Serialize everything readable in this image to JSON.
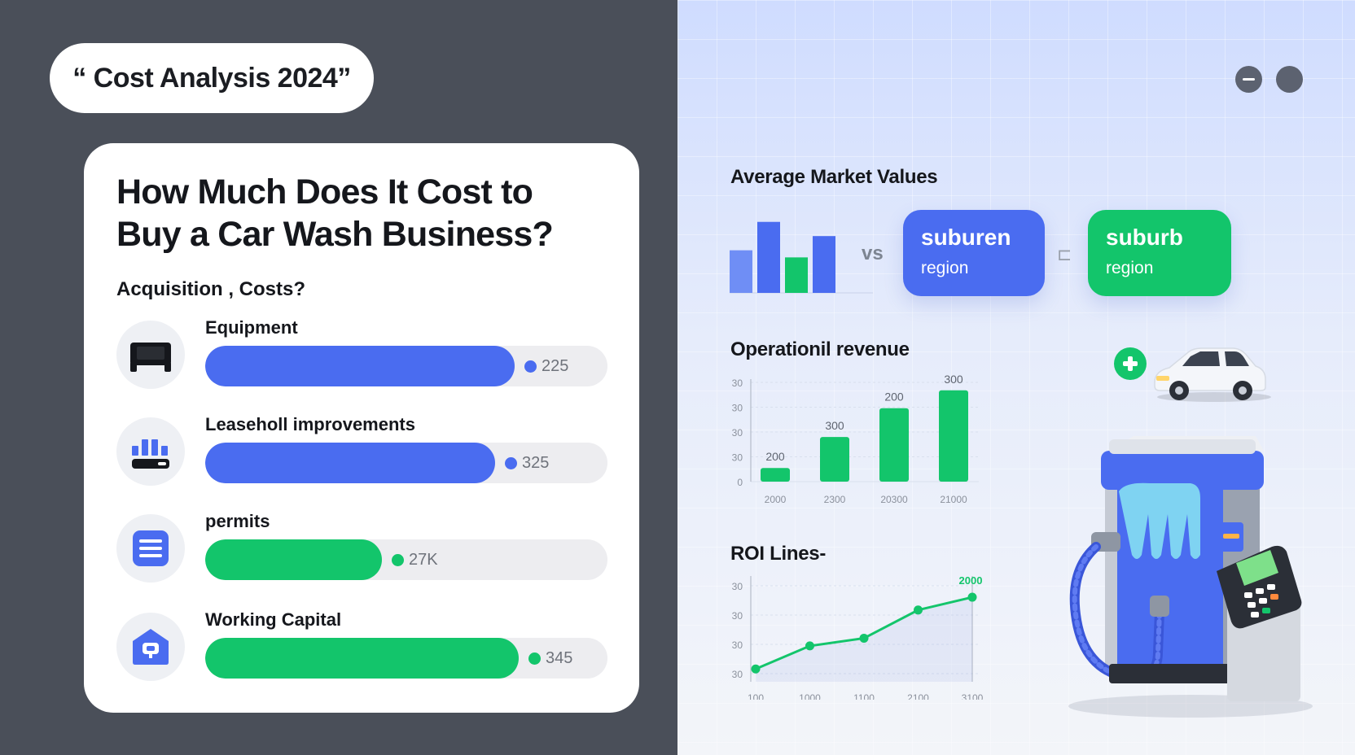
{
  "header": {
    "tag": "“ Cost Analysis 2024”"
  },
  "card": {
    "title_line1": "How Much Does It Cost to",
    "title_line2": "Buy a Car Wash Business?",
    "subtitle": "Acquisition , Costs?"
  },
  "costs": [
    {
      "label": "Equipment",
      "value": "225",
      "progress": 0.77,
      "color": "#4a6cf0",
      "icon": "equipment-icon"
    },
    {
      "label": "Leaseholl improvements",
      "value": "325",
      "progress": 0.72,
      "color": "#4a6cf0",
      "icon": "building-icon"
    },
    {
      "label": "permits",
      "value": "27K",
      "progress": 0.44,
      "color": "#13c56b",
      "icon": "document-icon"
    },
    {
      "label": "Working Capital",
      "value": "345",
      "progress": 0.78,
      "color": "#13c56b",
      "icon": "home-icon"
    }
  ],
  "market": {
    "title": "Average Market Values",
    "vs": "vs",
    "separator": "⊏",
    "regions": [
      {
        "name": "suburen",
        "sub": "region",
        "color": "#4a6cf0"
      },
      {
        "name": "suburb",
        "sub": "region",
        "color": "#13c56b"
      }
    ]
  },
  "colors": {
    "blue": "#4a6cf0",
    "green": "#13c56b",
    "left_bg": "#4a4f59"
  },
  "chart_data": [
    {
      "type": "bar",
      "title": "",
      "categories": [
        "",
        "",
        "",
        ""
      ],
      "values": [
        60,
        100,
        50,
        80
      ],
      "colors": [
        "#6f8ef5",
        "#4a6cf0",
        "#13c56b",
        "#4a6cf0"
      ],
      "ylim": [
        0,
        110
      ]
    },
    {
      "type": "bar",
      "title": "Operationil revenue",
      "categories": [
        "2000",
        "2300",
        "20300",
        "21000"
      ],
      "values": [
        200,
        300,
        200,
        300
      ],
      "data_labels": [
        "200",
        "300",
        "200",
        "300"
      ],
      "y_tick_labels": [
        "30",
        "30",
        "30",
        "30",
        "0"
      ],
      "xlabel": "",
      "ylabel": "",
      "grid": true,
      "color": "#13c56b"
    },
    {
      "type": "line",
      "title": "ROI Lines-",
      "x_tick_labels": [
        "100",
        "1000",
        "1100",
        "2100",
        "3100"
      ],
      "y_tick_labels": [
        "30",
        "30",
        "30",
        "30"
      ],
      "values": [
        10,
        28,
        34,
        56,
        66
      ],
      "ylim": [
        0,
        80
      ],
      "end_label": "2000",
      "grid": true,
      "color": "#13c56b"
    }
  ]
}
